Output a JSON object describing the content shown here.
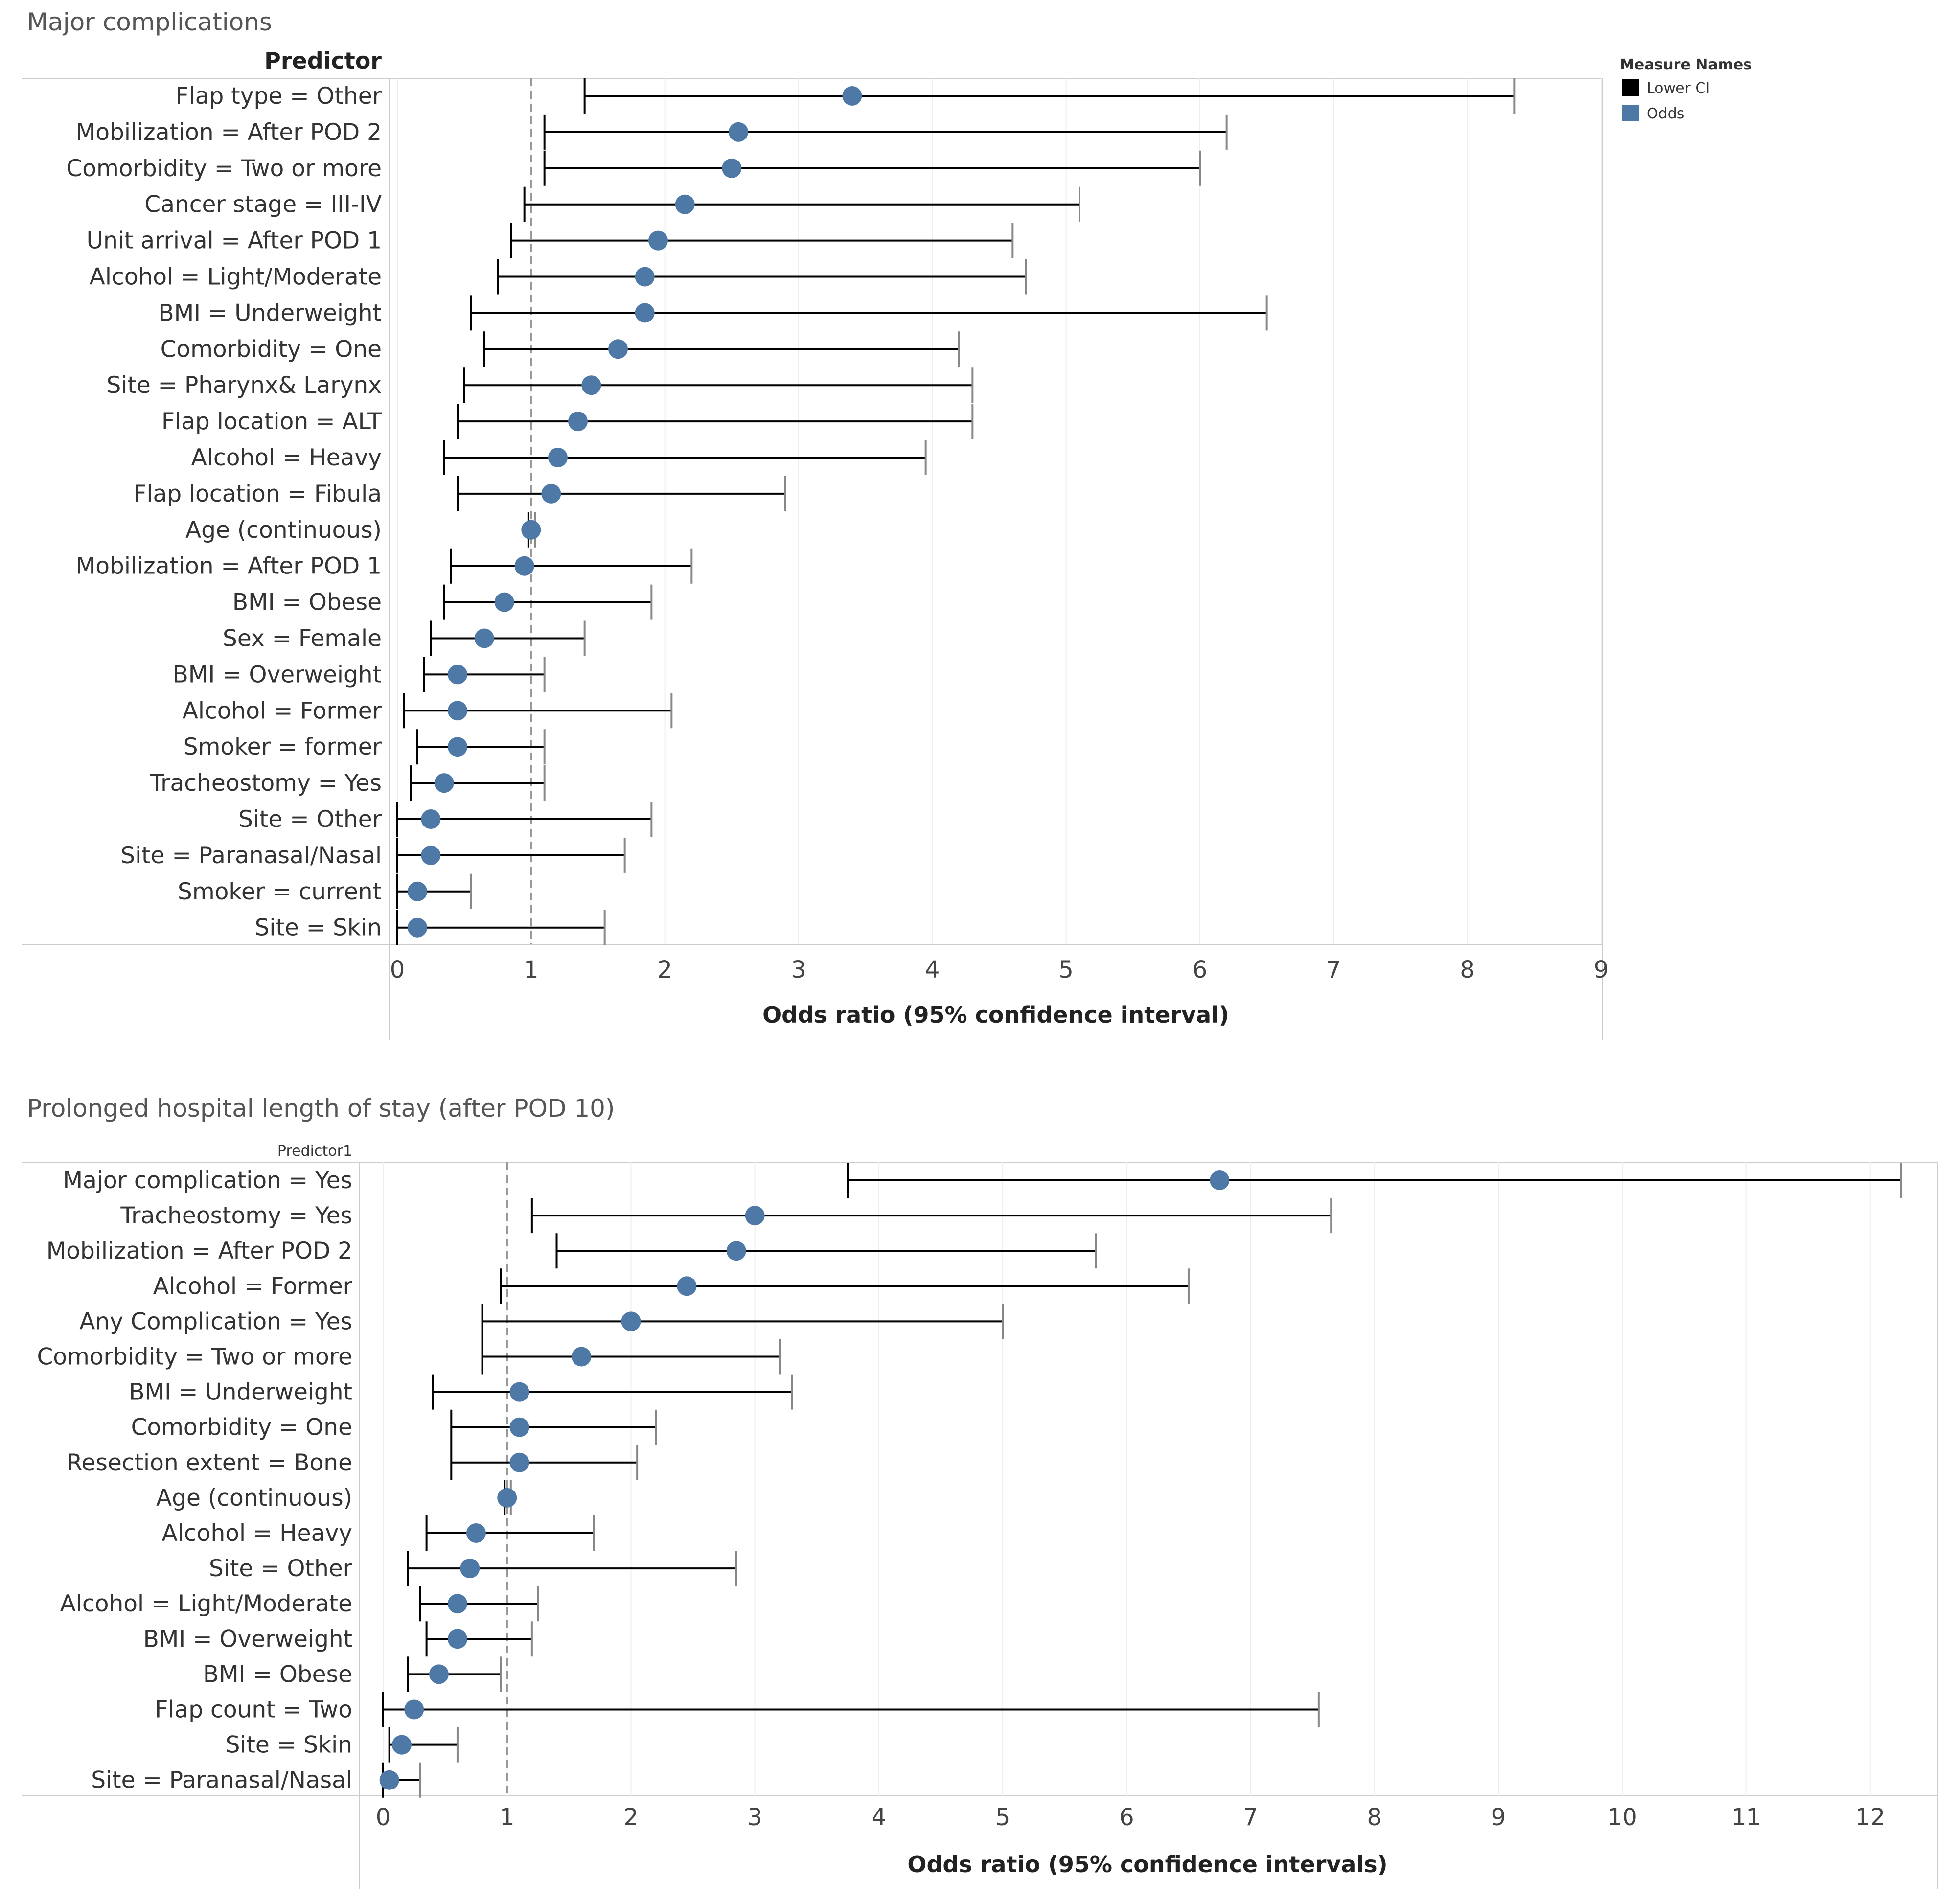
{
  "legend": {
    "title": "Measure Names",
    "items": [
      {
        "label": "Lower CI",
        "color": "#000000"
      },
      {
        "label": "Odds",
        "color": "#4e79a7"
      }
    ]
  },
  "colors": {
    "point": "#4e79a7",
    "ci": "#000000",
    "reference": "#999999",
    "grid": "#eeeeee"
  },
  "chart_data": [
    {
      "type": "forest",
      "title": "Major complications",
      "header": "Predictor",
      "xlabel": "Odds ratio (95% confidence interval)",
      "xlim": [
        0,
        9
      ],
      "xticks": [
        "0",
        "1",
        "2",
        "3",
        "4",
        "5",
        "6",
        "7",
        "8",
        "9"
      ],
      "reference_line": 1,
      "rows": [
        {
          "label": "Flap type = Other",
          "odds": 3.4,
          "lower": 1.4,
          "upper": 8.35
        },
        {
          "label": "Mobilization = After POD 2",
          "odds": 2.55,
          "lower": 1.1,
          "upper": 6.2
        },
        {
          "label": "Comorbidity = Two or more",
          "odds": 2.5,
          "lower": 1.1,
          "upper": 6.0
        },
        {
          "label": "Cancer stage = III-IV",
          "odds": 2.15,
          "lower": 0.95,
          "upper": 5.1
        },
        {
          "label": "Unit arrival = After POD 1",
          "odds": 1.95,
          "lower": 0.85,
          "upper": 4.6
        },
        {
          "label": "Alcohol = Light/Moderate",
          "odds": 1.85,
          "lower": 0.75,
          "upper": 4.7
        },
        {
          "label": "BMI = Underweight",
          "odds": 1.85,
          "lower": 0.55,
          "upper": 6.5
        },
        {
          "label": "Comorbidity = One",
          "odds": 1.65,
          "lower": 0.65,
          "upper": 4.2
        },
        {
          "label": "Site = Pharynx& Larynx",
          "odds": 1.45,
          "lower": 0.5,
          "upper": 4.3
        },
        {
          "label": "Flap location = ALT",
          "odds": 1.35,
          "lower": 0.45,
          "upper": 4.3
        },
        {
          "label": "Alcohol = Heavy",
          "odds": 1.2,
          "lower": 0.35,
          "upper": 3.95
        },
        {
          "label": "Flap location = Fibula",
          "odds": 1.15,
          "lower": 0.45,
          "upper": 2.9
        },
        {
          "label": "Age (continuous)",
          "odds": 1.0,
          "lower": 0.98,
          "upper": 1.03
        },
        {
          "label": "Mobilization = After POD 1",
          "odds": 0.95,
          "lower": 0.4,
          "upper": 2.2
        },
        {
          "label": "BMI = Obese",
          "odds": 0.8,
          "lower": 0.35,
          "upper": 1.9
        },
        {
          "label": "Sex = Female",
          "odds": 0.65,
          "lower": 0.25,
          "upper": 1.4
        },
        {
          "label": "BMI = Overweight",
          "odds": 0.45,
          "lower": 0.2,
          "upper": 1.1
        },
        {
          "label": "Alcohol = Former",
          "odds": 0.45,
          "lower": 0.05,
          "upper": 2.05
        },
        {
          "label": "Smoker = former",
          "odds": 0.45,
          "lower": 0.15,
          "upper": 1.1
        },
        {
          "label": "Tracheostomy = Yes",
          "odds": 0.35,
          "lower": 0.1,
          "upper": 1.1
        },
        {
          "label": "Site = Other",
          "odds": 0.25,
          "lower": 0.0,
          "upper": 1.9
        },
        {
          "label": "Site = Paranasal/Nasal",
          "odds": 0.25,
          "lower": 0.0,
          "upper": 1.7
        },
        {
          "label": "Smoker = current",
          "odds": 0.15,
          "lower": 0.0,
          "upper": 0.55
        },
        {
          "label": "Site = Skin",
          "odds": 0.15,
          "lower": 0.0,
          "upper": 1.55
        }
      ]
    },
    {
      "type": "forest",
      "title": "Prolonged hospital length of stay (after POD 10)",
      "header": "Predictor1",
      "xlabel": "Odds ratio (95% confidence intervals)",
      "xlim": [
        0,
        12.4
      ],
      "xticks": [
        "0",
        "1",
        "2",
        "3",
        "4",
        "5",
        "6",
        "7",
        "8",
        "9",
        "10",
        "11",
        "12"
      ],
      "reference_line": 1,
      "rows": [
        {
          "label": "Major complication = Yes",
          "odds": 6.75,
          "lower": 3.75,
          "upper": 12.25
        },
        {
          "label": "Tracheostomy = Yes",
          "odds": 3.0,
          "lower": 1.2,
          "upper": 7.65
        },
        {
          "label": "Mobilization = After POD 2",
          "odds": 2.85,
          "lower": 1.4,
          "upper": 5.75
        },
        {
          "label": "Alcohol = Former",
          "odds": 2.45,
          "lower": 0.95,
          "upper": 6.5
        },
        {
          "label": "Any Complication = Yes",
          "odds": 2.0,
          "lower": 0.8,
          "upper": 5.0
        },
        {
          "label": "Comorbidity = Two or more",
          "odds": 1.6,
          "lower": 0.8,
          "upper": 3.2
        },
        {
          "label": "BMI = Underweight",
          "odds": 1.1,
          "lower": 0.4,
          "upper": 3.3
        },
        {
          "label": "Comorbidity = One",
          "odds": 1.1,
          "lower": 0.55,
          "upper": 2.2
        },
        {
          "label": "Resection extent = Bone",
          "odds": 1.1,
          "lower": 0.55,
          "upper": 2.05
        },
        {
          "label": "Age (continuous)",
          "odds": 1.0,
          "lower": 0.98,
          "upper": 1.03
        },
        {
          "label": "Alcohol = Heavy",
          "odds": 0.75,
          "lower": 0.35,
          "upper": 1.7
        },
        {
          "label": "Site = Other",
          "odds": 0.7,
          "lower": 0.2,
          "upper": 2.85
        },
        {
          "label": "Alcohol = Light/Moderate",
          "odds": 0.6,
          "lower": 0.3,
          "upper": 1.25
        },
        {
          "label": "BMI = Overweight",
          "odds": 0.6,
          "lower": 0.35,
          "upper": 1.2
        },
        {
          "label": "BMI = Obese",
          "odds": 0.45,
          "lower": 0.2,
          "upper": 0.95
        },
        {
          "label": "Flap count = Two",
          "odds": 0.25,
          "lower": 0.0,
          "upper": 7.55
        },
        {
          "label": "Site = Skin",
          "odds": 0.15,
          "lower": 0.05,
          "upper": 0.6
        },
        {
          "label": "Site = Paranasal/Nasal",
          "odds": 0.05,
          "lower": 0.0,
          "upper": 0.3
        }
      ]
    }
  ]
}
